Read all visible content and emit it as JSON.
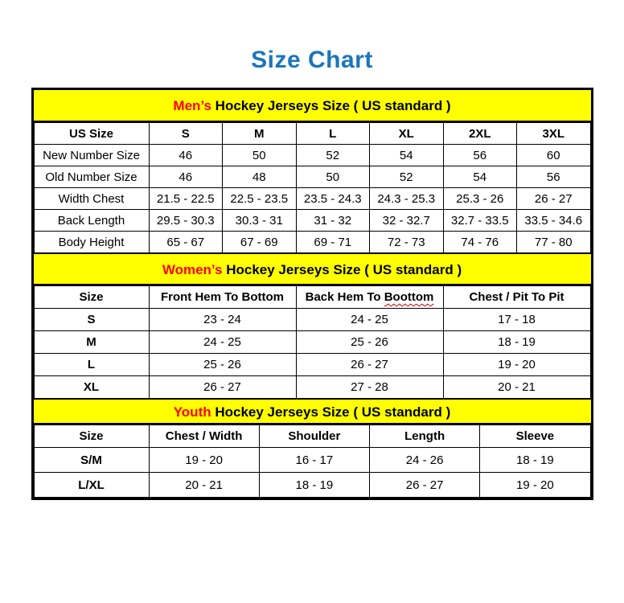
{
  "title": "Size Chart",
  "colors": {
    "title_blue": "#1b75bc",
    "band_yellow": "#ffff00",
    "accent_red": "#ff0000",
    "border_black": "#000000"
  },
  "sections": [
    {
      "band_accent": "Men’s",
      "band_rest": " Hockey Jerseys Size ( US standard )",
      "columns": [
        "US Size",
        "S",
        "M",
        "L",
        "XL",
        "2XL",
        "3XL"
      ],
      "rows": [
        [
          "New Number Size",
          "46",
          "50",
          "52",
          "54",
          "56",
          "60"
        ],
        [
          "Old Number Size",
          "46",
          "48",
          "50",
          "52",
          "54",
          "56"
        ],
        [
          "Width Chest",
          "21.5 - 22.5",
          "22.5 - 23.5",
          "23.5 - 24.3",
          "24.3 - 25.3",
          "25.3 - 26",
          "26 - 27"
        ],
        [
          "Back Length",
          "29.5 - 30.3",
          "30.3 - 31",
          "31 - 32",
          "32 - 32.7",
          "32.7 - 33.5",
          "33.5 - 34.6"
        ],
        [
          "Body Height",
          "65 - 67",
          "67 - 69",
          "69 - 71",
          "72 - 73",
          "74 - 76",
          "77 - 80"
        ]
      ]
    },
    {
      "band_accent": "Women’s",
      "band_rest": " Hockey Jerseys Size ( US standard )",
      "columns": [
        "Size",
        "Front Hem To Bottom",
        {
          "label": "Back Hem To Boottom",
          "wavy_word": "Boottom"
        },
        "Chest / Pit To Pit"
      ],
      "rows": [
        [
          "S",
          "23 - 24",
          "24 - 25",
          "17 - 18"
        ],
        [
          "M",
          "24 - 25",
          "25 - 26",
          "18 - 19"
        ],
        [
          "L",
          "25 - 26",
          "26 - 27",
          "19 - 20"
        ],
        [
          "XL",
          "26 - 27",
          "27 - 28",
          "20 - 21"
        ]
      ]
    },
    {
      "band_accent": "Youth",
      "band_rest": " Hockey Jerseys Size ( US standard )",
      "columns": [
        "Size",
        "Chest / Width",
        "Shoulder",
        "Length",
        "Sleeve"
      ],
      "rows": [
        [
          "S/M",
          "19 - 20",
          "16 - 17",
          "24 - 26",
          "18 - 19"
        ],
        [
          "L/XL",
          "20 - 21",
          "18 - 19",
          "26 - 27",
          "19 - 20"
        ]
      ]
    }
  ]
}
